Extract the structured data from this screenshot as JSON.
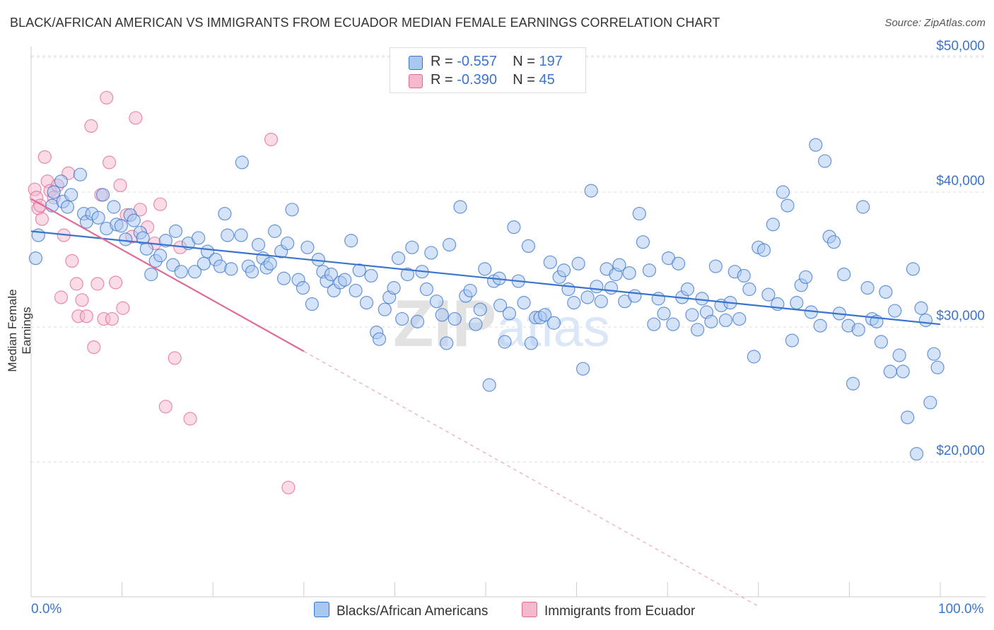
{
  "title": "BLACK/AFRICAN AMERICAN VS IMMIGRANTS FROM ECUADOR MEDIAN FEMALE EARNINGS CORRELATION CHART",
  "source": "Source: ZipAtlas.com",
  "watermark": "ZIPatlas",
  "legend": {
    "r_label": "R =",
    "n_label": "N =",
    "rows": [
      {
        "r": "-0.557",
        "n": "197"
      },
      {
        "r": "-0.390",
        "n": "45"
      }
    ]
  },
  "colors": {
    "blue": "#3a74cc",
    "blue_fill": "#a9c8f0",
    "pink": "#e06a97",
    "pink_fill": "#f5b8cd",
    "grid": "#dddddd",
    "axis_label": "#3a74cc"
  },
  "chart_data": {
    "type": "scatter",
    "title": "BLACK/AFRICAN AMERICAN VS IMMIGRANTS FROM ECUADOR MEDIAN FEMALE EARNINGS CORRELATION CHART",
    "xlabel": "",
    "ylabel": "Median Female Earnings",
    "xlim": [
      0,
      100
    ],
    "ylim": [
      9000,
      52000
    ],
    "x_tick_labels": [
      "0.0%",
      "100.0%"
    ],
    "y_ticks": [
      20000,
      30000,
      40000,
      50000
    ],
    "y_tick_labels": [
      "$20,000",
      "$30,000",
      "$40,000",
      "$50,000"
    ],
    "grid": "horizontal dashed",
    "legend_position": "top-center",
    "series": [
      {
        "name": "Blacks/African Americans",
        "color": "#3a74cc",
        "trend": {
          "x": [
            0,
            100
          ],
          "y": [
            37100,
            30200
          ],
          "style": "solid"
        },
        "points": [
          [
            0.5,
            35100
          ],
          [
            0.8,
            36800
          ],
          [
            2.3,
            39000
          ],
          [
            2.5,
            40000
          ],
          [
            3.3,
            40800
          ],
          [
            3.5,
            39300
          ],
          [
            4.0,
            38900
          ],
          [
            4.4,
            39800
          ],
          [
            5.4,
            41300
          ],
          [
            5.8,
            38400
          ],
          [
            6.1,
            37800
          ],
          [
            6.7,
            38400
          ],
          [
            7.4,
            38100
          ],
          [
            7.9,
            39800
          ],
          [
            8.3,
            37300
          ],
          [
            9.1,
            38900
          ],
          [
            9.4,
            37600
          ],
          [
            9.9,
            37500
          ],
          [
            10.4,
            36500
          ],
          [
            10.9,
            38300
          ],
          [
            11.3,
            37900
          ],
          [
            12.0,
            37000
          ],
          [
            12.3,
            36600
          ],
          [
            12.7,
            35800
          ],
          [
            13.2,
            33900
          ],
          [
            13.7,
            34900
          ],
          [
            14.2,
            35300
          ],
          [
            14.8,
            36400
          ],
          [
            15.6,
            34600
          ],
          [
            15.9,
            37100
          ],
          [
            16.5,
            34100
          ],
          [
            17.3,
            36200
          ],
          [
            18.0,
            34100
          ],
          [
            18.4,
            36600
          ],
          [
            19.0,
            34700
          ],
          [
            19.4,
            35600
          ],
          [
            20.3,
            35000
          ],
          [
            20.8,
            34500
          ],
          [
            21.3,
            38400
          ],
          [
            21.6,
            36800
          ],
          [
            22.0,
            34300
          ],
          [
            23.1,
            36800
          ],
          [
            23.2,
            42200
          ],
          [
            23.9,
            34500
          ],
          [
            24.3,
            34100
          ],
          [
            25.0,
            36100
          ],
          [
            25.5,
            35100
          ],
          [
            25.9,
            34400
          ],
          [
            26.3,
            34700
          ],
          [
            26.8,
            37100
          ],
          [
            27.5,
            35600
          ],
          [
            27.8,
            33600
          ],
          [
            28.2,
            36200
          ],
          [
            28.7,
            38700
          ],
          [
            29.4,
            33500
          ],
          [
            29.9,
            32900
          ],
          [
            30.4,
            35900
          ],
          [
            30.9,
            31700
          ],
          [
            31.6,
            35000
          ],
          [
            32.1,
            34100
          ],
          [
            32.5,
            33400
          ],
          [
            33.0,
            33900
          ],
          [
            33.3,
            32700
          ],
          [
            34.0,
            33300
          ],
          [
            34.5,
            33500
          ],
          [
            35.2,
            36400
          ],
          [
            35.7,
            32700
          ],
          [
            36.1,
            34200
          ],
          [
            36.9,
            31800
          ],
          [
            37.4,
            33800
          ],
          [
            38.0,
            29600
          ],
          [
            38.3,
            29100
          ],
          [
            38.9,
            31300
          ],
          [
            39.4,
            32200
          ],
          [
            39.9,
            32900
          ],
          [
            40.4,
            35100
          ],
          [
            40.8,
            30600
          ],
          [
            41.4,
            33900
          ],
          [
            41.9,
            35900
          ],
          [
            42.5,
            30400
          ],
          [
            43.0,
            34100
          ],
          [
            43.5,
            32800
          ],
          [
            44.0,
            35500
          ],
          [
            44.6,
            31900
          ],
          [
            45.2,
            30900
          ],
          [
            45.7,
            28800
          ],
          [
            46.0,
            36100
          ],
          [
            46.6,
            30600
          ],
          [
            47.2,
            38900
          ],
          [
            47.8,
            32300
          ],
          [
            48.3,
            32700
          ],
          [
            48.9,
            30200
          ],
          [
            49.4,
            31300
          ],
          [
            49.9,
            34300
          ],
          [
            50.4,
            25700
          ],
          [
            50.9,
            33400
          ],
          [
            51.5,
            33600
          ],
          [
            51.6,
            31600
          ],
          [
            52.1,
            28900
          ],
          [
            52.6,
            31000
          ],
          [
            53.1,
            37400
          ],
          [
            53.6,
            33400
          ],
          [
            54.2,
            31800
          ],
          [
            54.7,
            36000
          ],
          [
            55.0,
            28800
          ],
          [
            55.5,
            30700
          ],
          [
            56.0,
            30700
          ],
          [
            56.5,
            30900
          ],
          [
            57.1,
            34800
          ],
          [
            57.5,
            30300
          ],
          [
            58.1,
            33700
          ],
          [
            58.6,
            34200
          ],
          [
            59.1,
            32800
          ],
          [
            59.7,
            31800
          ],
          [
            60.2,
            34700
          ],
          [
            60.7,
            26900
          ],
          [
            61.2,
            32200
          ],
          [
            61.6,
            40100
          ],
          [
            62.2,
            33000
          ],
          [
            62.7,
            31900
          ],
          [
            63.3,
            34300
          ],
          [
            63.8,
            32900
          ],
          [
            64.3,
            33900
          ],
          [
            64.7,
            34600
          ],
          [
            65.3,
            31900
          ],
          [
            65.8,
            34000
          ],
          [
            66.4,
            32300
          ],
          [
            66.9,
            38400
          ],
          [
            67.3,
            36300
          ],
          [
            68.0,
            34200
          ],
          [
            68.5,
            30200
          ],
          [
            69.0,
            32100
          ],
          [
            69.6,
            31000
          ],
          [
            70.1,
            35100
          ],
          [
            70.6,
            30200
          ],
          [
            71.2,
            34700
          ],
          [
            71.6,
            32200
          ],
          [
            72.2,
            32800
          ],
          [
            72.7,
            30900
          ],
          [
            73.3,
            29800
          ],
          [
            73.8,
            32100
          ],
          [
            74.3,
            31100
          ],
          [
            74.8,
            30400
          ],
          [
            75.3,
            34500
          ],
          [
            75.9,
            31600
          ],
          [
            76.4,
            30500
          ],
          [
            76.9,
            31800
          ],
          [
            77.4,
            34100
          ],
          [
            77.9,
            30600
          ],
          [
            78.4,
            33800
          ],
          [
            79.0,
            32800
          ],
          [
            79.5,
            27800
          ],
          [
            80.0,
            35900
          ],
          [
            80.6,
            35700
          ],
          [
            81.1,
            32400
          ],
          [
            81.6,
            37600
          ],
          [
            82.1,
            31700
          ],
          [
            82.7,
            40000
          ],
          [
            83.2,
            39000
          ],
          [
            83.7,
            29000
          ],
          [
            84.2,
            31800
          ],
          [
            84.7,
            33100
          ],
          [
            85.2,
            33700
          ],
          [
            85.8,
            31100
          ],
          [
            86.3,
            43500
          ],
          [
            86.8,
            30100
          ],
          [
            87.3,
            42300
          ],
          [
            87.8,
            36700
          ],
          [
            88.3,
            36300
          ],
          [
            88.9,
            31000
          ],
          [
            89.4,
            33900
          ],
          [
            89.9,
            30100
          ],
          [
            90.4,
            25800
          ],
          [
            91.0,
            29800
          ],
          [
            91.5,
            38900
          ],
          [
            92.0,
            32900
          ],
          [
            92.5,
            30600
          ],
          [
            93.0,
            30400
          ],
          [
            93.5,
            28900
          ],
          [
            94.0,
            32600
          ],
          [
            94.5,
            26700
          ],
          [
            95.0,
            31200
          ],
          [
            95.5,
            27900
          ],
          [
            95.9,
            26700
          ],
          [
            96.4,
            23300
          ],
          [
            97.0,
            34300
          ],
          [
            97.4,
            20600
          ],
          [
            97.9,
            31400
          ],
          [
            98.4,
            30500
          ],
          [
            98.9,
            24400
          ],
          [
            99.3,
            28000
          ],
          [
            99.7,
            27000
          ]
        ]
      },
      {
        "name": "Immigrants from Ecuador",
        "color": "#e06a97",
        "trend": {
          "x": [
            0,
            30,
            80
          ],
          "y": [
            39500,
            28200,
            9300
          ],
          "style": "solid then dashed"
        },
        "points": [
          [
            0.4,
            40200
          ],
          [
            0.6,
            39600
          ],
          [
            0.8,
            38800
          ],
          [
            1.0,
            39000
          ],
          [
            1.2,
            38000
          ],
          [
            1.5,
            42600
          ],
          [
            1.8,
            40800
          ],
          [
            2.1,
            40100
          ],
          [
            2.5,
            39600
          ],
          [
            2.9,
            40500
          ],
          [
            3.3,
            32200
          ],
          [
            3.6,
            36800
          ],
          [
            4.1,
            41400
          ],
          [
            4.5,
            34900
          ],
          [
            5.0,
            33200
          ],
          [
            5.2,
            30800
          ],
          [
            5.6,
            32000
          ],
          [
            6.1,
            30800
          ],
          [
            6.6,
            44900
          ],
          [
            6.9,
            28500
          ],
          [
            7.3,
            33200
          ],
          [
            7.7,
            39800
          ],
          [
            8.0,
            30600
          ],
          [
            8.3,
            47000
          ],
          [
            8.6,
            42200
          ],
          [
            8.9,
            30600
          ],
          [
            9.3,
            33300
          ],
          [
            9.8,
            40500
          ],
          [
            10.1,
            31400
          ],
          [
            10.5,
            38300
          ],
          [
            11.1,
            36700
          ],
          [
            11.5,
            45500
          ],
          [
            12.0,
            38700
          ],
          [
            12.8,
            37400
          ],
          [
            13.6,
            36200
          ],
          [
            14.2,
            39100
          ],
          [
            14.8,
            24100
          ],
          [
            15.8,
            27700
          ],
          [
            16.4,
            35900
          ],
          [
            17.5,
            23200
          ],
          [
            26.4,
            43900
          ],
          [
            28.3,
            18100
          ]
        ]
      }
    ]
  }
}
